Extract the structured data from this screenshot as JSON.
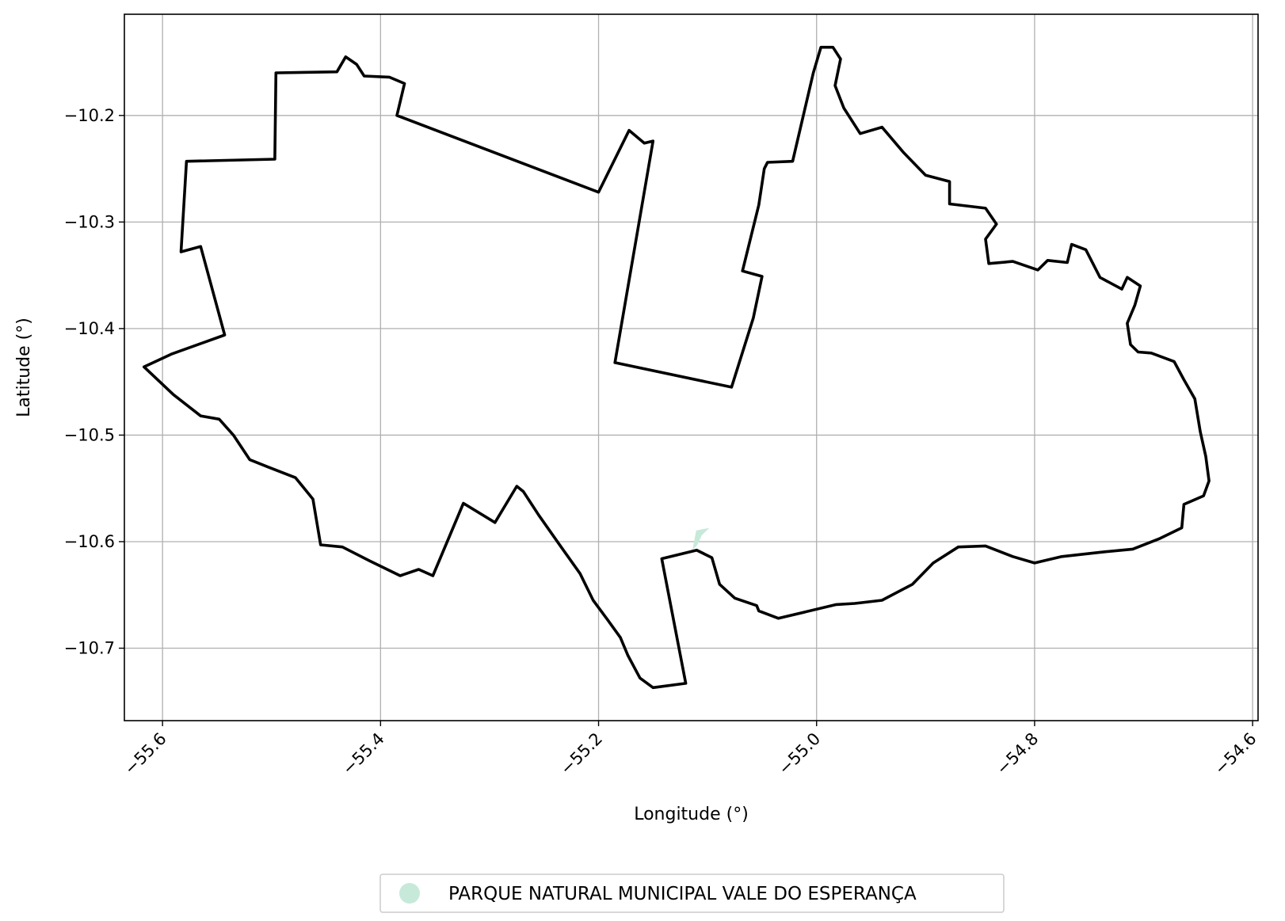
{
  "chart_data": {
    "type": "map",
    "xlabel": "Longitude (°)",
    "ylabel": "Latitude (°)",
    "xlim": [
      -55.635,
      -54.595
    ],
    "ylim": [
      -10.768,
      -10.105
    ],
    "grid": true,
    "legend_placement": "bottom-center",
    "xticks": [
      {
        "value": -55.6,
        "label": "−55.6"
      },
      {
        "value": -55.4,
        "label": "−55.4"
      },
      {
        "value": -55.2,
        "label": "−55.2"
      },
      {
        "value": -55.0,
        "label": "−55.0"
      },
      {
        "value": -54.8,
        "label": "−54.8"
      },
      {
        "value": -54.6,
        "label": "−54.6"
      }
    ],
    "yticks": [
      {
        "value": -10.2,
        "label": "−10.2"
      },
      {
        "value": -10.3,
        "label": "−10.3"
      },
      {
        "value": -10.4,
        "label": "−10.4"
      },
      {
        "value": -10.5,
        "label": "−10.5"
      },
      {
        "value": -10.6,
        "label": "−10.6"
      },
      {
        "value": -10.7,
        "label": "−10.7"
      }
    ],
    "outline_color": "#000000",
    "legend": [
      {
        "label": "PARQUE NATURAL MUNICIPAL VALE DO ESPERANÇA",
        "color": "#c7e9da"
      }
    ],
    "park_polygon": [
      [
        -55.11,
        -10.59
      ],
      [
        -55.1,
        -10.588
      ],
      [
        -55.106,
        -10.594
      ],
      [
        -55.11,
        -10.603
      ],
      [
        -55.113,
        -10.606
      ]
    ],
    "boundary": [
      [
        -55.617,
        -10.436
      ],
      [
        -55.592,
        -10.424
      ],
      [
        -55.543,
        -10.406
      ],
      [
        -55.565,
        -10.323
      ],
      [
        -55.583,
        -10.328
      ],
      [
        -55.578,
        -10.243
      ],
      [
        -55.497,
        -10.241
      ],
      [
        -55.496,
        -10.16
      ],
      [
        -55.44,
        -10.159
      ],
      [
        -55.432,
        -10.145
      ],
      [
        -55.422,
        -10.152
      ],
      [
        -55.415,
        -10.163
      ],
      [
        -55.392,
        -10.164
      ],
      [
        -55.378,
        -10.17
      ],
      [
        -55.385,
        -10.2
      ],
      [
        -55.2,
        -10.272
      ],
      [
        -55.172,
        -10.214
      ],
      [
        -55.158,
        -10.226
      ],
      [
        -55.15,
        -10.224
      ],
      [
        -55.185,
        -10.432
      ],
      [
        -55.078,
        -10.455
      ],
      [
        -55.058,
        -10.39
      ],
      [
        -55.05,
        -10.351
      ],
      [
        -55.068,
        -10.346
      ],
      [
        -55.053,
        -10.284
      ],
      [
        -55.048,
        -10.25
      ],
      [
        -55.045,
        -10.244
      ],
      [
        -55.022,
        -10.243
      ],
      [
        -55.003,
        -10.16
      ],
      [
        -54.996,
        -10.136
      ],
      [
        -54.985,
        -10.136
      ],
      [
        -54.978,
        -10.147
      ],
      [
        -54.983,
        -10.172
      ],
      [
        -54.975,
        -10.193
      ],
      [
        -54.96,
        -10.217
      ],
      [
        -54.94,
        -10.211
      ],
      [
        -54.92,
        -10.235
      ],
      [
        -54.9,
        -10.256
      ],
      [
        -54.878,
        -10.262
      ],
      [
        -54.878,
        -10.283
      ],
      [
        -54.845,
        -10.287
      ],
      [
        -54.835,
        -10.302
      ],
      [
        -54.845,
        -10.316
      ],
      [
        -54.842,
        -10.339
      ],
      [
        -54.82,
        -10.337
      ],
      [
        -54.797,
        -10.345
      ],
      [
        -54.788,
        -10.336
      ],
      [
        -54.77,
        -10.338
      ],
      [
        -54.766,
        -10.321
      ],
      [
        -54.753,
        -10.326
      ],
      [
        -54.74,
        -10.352
      ],
      [
        -54.72,
        -10.363
      ],
      [
        -54.715,
        -10.352
      ],
      [
        -54.703,
        -10.36
      ],
      [
        -54.708,
        -10.378
      ],
      [
        -54.715,
        -10.395
      ],
      [
        -54.712,
        -10.415
      ],
      [
        -54.705,
        -10.422
      ],
      [
        -54.693,
        -10.423
      ],
      [
        -54.672,
        -10.431
      ],
      [
        -54.663,
        -10.448
      ],
      [
        -54.653,
        -10.466
      ],
      [
        -54.648,
        -10.497
      ],
      [
        -54.643,
        -10.52
      ],
      [
        -54.64,
        -10.543
      ],
      [
        -54.645,
        -10.557
      ],
      [
        -54.663,
        -10.565
      ],
      [
        -54.665,
        -10.587
      ],
      [
        -54.685,
        -10.597
      ],
      [
        -54.71,
        -10.607
      ],
      [
        -54.74,
        -10.61
      ],
      [
        -54.775,
        -10.614
      ],
      [
        -54.8,
        -10.62
      ],
      [
        -54.82,
        -10.614
      ],
      [
        -54.845,
        -10.604
      ],
      [
        -54.87,
        -10.605
      ],
      [
        -54.893,
        -10.62
      ],
      [
        -54.912,
        -10.64
      ],
      [
        -54.94,
        -10.655
      ],
      [
        -54.965,
        -10.658
      ],
      [
        -54.982,
        -10.659
      ],
      [
        -55.035,
        -10.672
      ],
      [
        -55.053,
        -10.665
      ],
      [
        -55.055,
        -10.66
      ],
      [
        -55.075,
        -10.653
      ],
      [
        -55.089,
        -10.64
      ],
      [
        -55.096,
        -10.615
      ],
      [
        -55.11,
        -10.608
      ],
      [
        -55.142,
        -10.616
      ],
      [
        -55.12,
        -10.733
      ],
      [
        -55.15,
        -10.737
      ],
      [
        -55.162,
        -10.728
      ],
      [
        -55.173,
        -10.707
      ],
      [
        -55.18,
        -10.69
      ],
      [
        -55.192,
        -10.673
      ],
      [
        -55.205,
        -10.655
      ],
      [
        -55.217,
        -10.63
      ],
      [
        -55.235,
        -10.604
      ],
      [
        -55.255,
        -10.575
      ],
      [
        -55.269,
        -10.553
      ],
      [
        -55.275,
        -10.548
      ],
      [
        -55.295,
        -10.582
      ],
      [
        -55.324,
        -10.564
      ],
      [
        -55.352,
        -10.632
      ],
      [
        -55.365,
        -10.626
      ],
      [
        -55.382,
        -10.632
      ],
      [
        -55.41,
        -10.618
      ],
      [
        -55.435,
        -10.605
      ],
      [
        -55.455,
        -10.603
      ],
      [
        -55.462,
        -10.56
      ],
      [
        -55.478,
        -10.54
      ],
      [
        -55.503,
        -10.53
      ],
      [
        -55.52,
        -10.523
      ],
      [
        -55.535,
        -10.5
      ],
      [
        -55.548,
        -10.485
      ],
      [
        -55.565,
        -10.482
      ],
      [
        -55.59,
        -10.462
      ],
      [
        -55.617,
        -10.436
      ]
    ]
  }
}
